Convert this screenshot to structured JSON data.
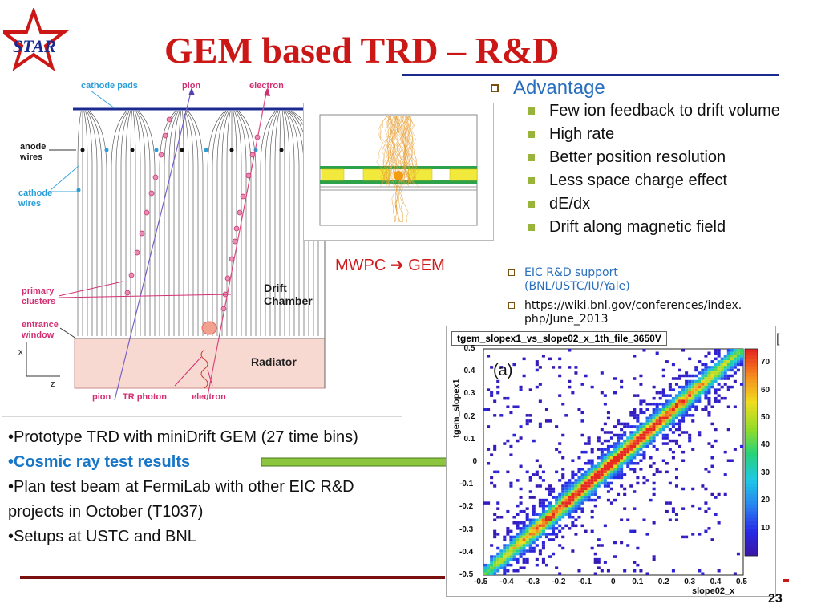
{
  "slide": {
    "title": "GEM based TRD – R&D",
    "logo_text": "STAR",
    "page_number": "23"
  },
  "diagram": {
    "labels": {
      "cathode_pads": "cathode pads",
      "pion_top": "pion",
      "electron_top": "electron",
      "anode_wires": "anode\nwires",
      "cathode_wires": "cathode\nwires",
      "primary_clusters": "primary\nclusters",
      "entrance_window": "entrance\nwindow",
      "drift_chamber": "Drift\nChamber",
      "radiator": "Radiator",
      "pion_bottom": "pion",
      "tr_photon": "TR photon",
      "electron_bottom": "electron",
      "axis_x": "x",
      "axis_z": "z"
    },
    "mwpc_arrow": "MWPC ➔ GEM"
  },
  "advantages": {
    "title": "Advantage",
    "items": [
      "Few ion feedback to drift volume",
      "High rate",
      "Better position resolution",
      "Less space charge effect",
      "dE/dx",
      "Drift along magnetic field"
    ]
  },
  "extra_items": {
    "support": "EIC R&D support\n(BNL/USTC/IU/Yale)",
    "link": "https://wiki.bnl.gov/conferences/index.\nphp/June_2013"
  },
  "notes": {
    "line1": "•Prototype TRD with miniDrift GEM (27 time bins)",
    "line2": "•Cosmic ray test results",
    "line3": "•Plan test beam at FermiLab with other EIC R&D",
    "line3b": "projects in October (T1037)",
    "line4": "•Setups at USTC and BNL"
  },
  "colors": {
    "title_red": "#cc1717",
    "accent_blue": "#2a6fbd",
    "arrow_green": "#8cc63f",
    "bullet_green": "#9ab33a"
  },
  "chart_data": {
    "type": "heatmap",
    "title": "tgem_slopex1_vs_slope02_x_1th_file_3650V",
    "panel_label": "(a)",
    "xlabel": "slope02_x",
    "ylabel": "tgem_slopex1",
    "xlim": [
      -0.5,
      0.5
    ],
    "ylim": [
      -0.5,
      0.5
    ],
    "x_ticks": [
      "-0.5",
      "-0.4",
      "-0.3",
      "-0.2",
      "-0.1",
      "0",
      "0.1",
      "0.2",
      "0.3",
      "0.4",
      "0.5"
    ],
    "y_ticks": [
      "0.5",
      "0.4",
      "0.3",
      "0.2",
      "0.1",
      "0",
      "-0.1",
      "-0.2",
      "-0.3",
      "-0.4",
      "-0.5"
    ],
    "z_ticks": [
      "70",
      "60",
      "50",
      "40",
      "30",
      "20",
      "10"
    ],
    "zlim": [
      0,
      75
    ],
    "description_relation": "y ≈ x",
    "correlation_slope": 1.0,
    "peak_counts": 70
  }
}
